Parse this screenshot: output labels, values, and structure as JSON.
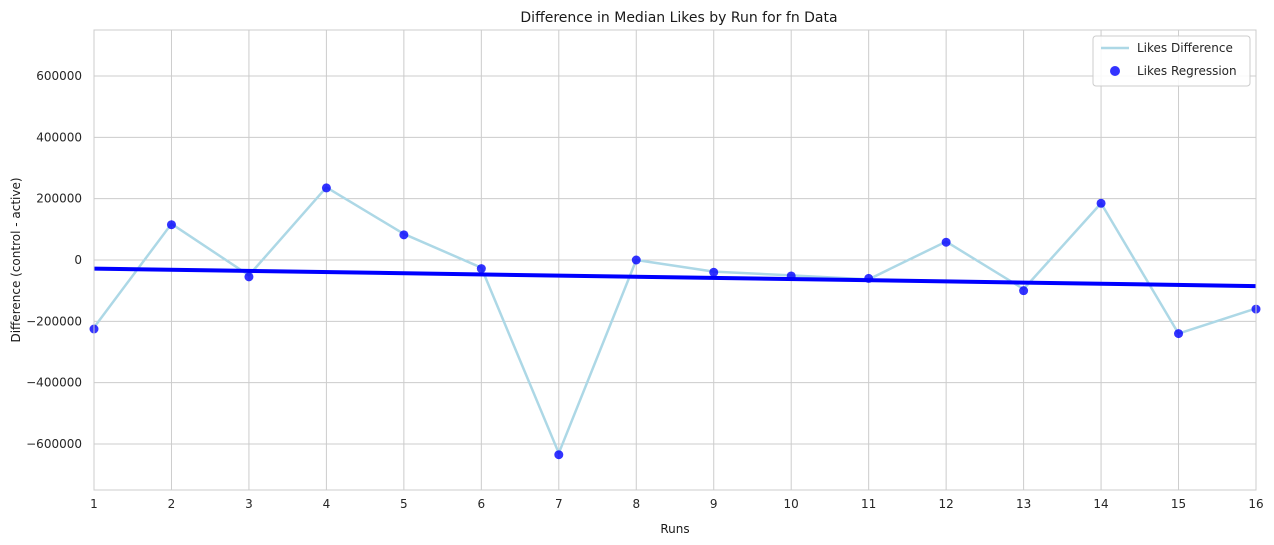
{
  "chart_data": {
    "type": "line",
    "title": "Difference in Median Likes by Run for fn Data",
    "xlabel": "Runs",
    "ylabel": "Difference (control - active)",
    "xlim": [
      1,
      16
    ],
    "ylim": [
      -750000,
      750000
    ],
    "x_ticks": [
      1,
      2,
      3,
      4,
      5,
      6,
      7,
      8,
      9,
      10,
      11,
      12,
      13,
      14,
      15,
      16
    ],
    "y_ticks": [
      -600000,
      -400000,
      -200000,
      0,
      200000,
      400000,
      600000
    ],
    "y_tick_labels": [
      "−600000",
      "−400000",
      "−200000",
      "0",
      "200000",
      "400000",
      "600000"
    ],
    "grid": true,
    "legend_position": "top-right",
    "series": [
      {
        "name": "Likes Difference",
        "kind": "line",
        "color": "#add8e6",
        "x": [
          1,
          2,
          3,
          4,
          5,
          6,
          7,
          8,
          9,
          10,
          11,
          12,
          13,
          14,
          15,
          16
        ],
        "y": [
          -220000,
          118000,
          -50000,
          237000,
          85000,
          -25000,
          -630000,
          0,
          -38000,
          -50000,
          -63000,
          60000,
          -95000,
          185000,
          -240000,
          -158000
        ]
      },
      {
        "name": "Likes Regression",
        "kind": "scatter",
        "color": "#0000ff",
        "x": [
          1,
          2,
          3,
          4,
          5,
          6,
          7,
          8,
          9,
          10,
          11,
          12,
          13,
          14,
          15,
          16
        ],
        "y": [
          -225000,
          115000,
          -55000,
          235000,
          82000,
          -28000,
          -635000,
          0,
          -40000,
          -52000,
          -60000,
          58000,
          -100000,
          185000,
          -240000,
          -160000
        ]
      },
      {
        "name": "",
        "kind": "regression-line",
        "color": "#0000ff",
        "x": [
          1,
          16
        ],
        "y": [
          -28000,
          -85000
        ]
      }
    ]
  }
}
